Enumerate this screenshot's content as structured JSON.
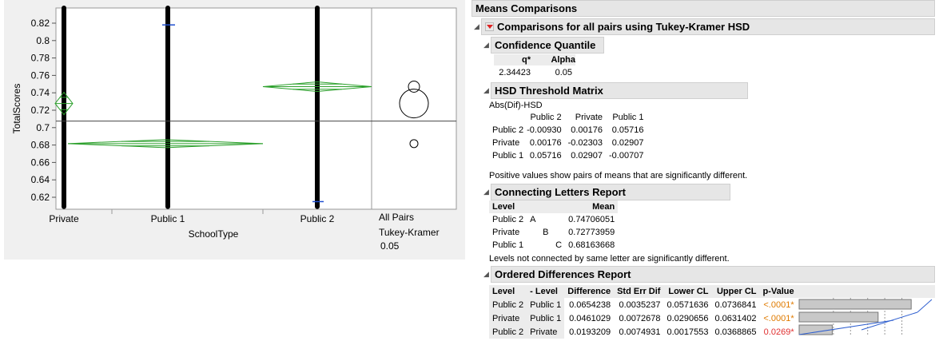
{
  "plot": {
    "y_axis_title": "TotalScores",
    "x_axis_title": "SchoolType",
    "y_ticks": [
      "0.82",
      "0.8",
      "0.78",
      "0.76",
      "0.74",
      "0.72",
      "0.7",
      "0.68",
      "0.66",
      "0.64",
      "0.62"
    ],
    "x_categories": [
      "Private",
      "Public 1",
      "Public 2"
    ],
    "grand_mean": 0.7075,
    "group_means": {
      "Private": 0.72773959,
      "Public 1": 0.68163668,
      "Public 2": 0.74706051
    },
    "comparison_labels": [
      "All Pairs",
      "Tukey-Kramer",
      "0.05"
    ],
    "colors": {
      "diamond": "#2ca02c",
      "quantile_mark": "#1f4fd0",
      "points": "#000000"
    }
  },
  "report": {
    "title": "Means Comparisons",
    "subtitle": "Comparisons for all pairs using Tukey-Kramer HSD",
    "confidence": {
      "title": "Confidence Quantile",
      "headers": [
        "q*",
        "Alpha"
      ],
      "values": [
        "2.34423",
        "0.05"
      ]
    },
    "hsd": {
      "title": "HSD Threshold Matrix",
      "caption": "Abs(Dif)-HSD",
      "col_headers": [
        "Public 2",
        "Private",
        "Public 1"
      ],
      "rows": [
        {
          "label": "Public 2",
          "values": [
            "-0.00930",
            "0.00176",
            "0.05716"
          ]
        },
        {
          "label": "Private",
          "values": [
            "0.00176",
            "-0.02303",
            "0.02907"
          ]
        },
        {
          "label": "Public 1",
          "values": [
            "0.05716",
            "0.02907",
            "-0.00707"
          ]
        }
      ],
      "note": "Positive values show pairs of means that are significantly different."
    },
    "letters": {
      "title": "Connecting Letters Report",
      "headers": [
        "Level",
        "Mean"
      ],
      "rows": [
        {
          "level": "Public 2",
          "a": "A",
          "b": "",
          "c": "",
          "mean": "0.74706051"
        },
        {
          "level": "Private",
          "a": "",
          "b": "B",
          "c": "",
          "mean": "0.72773959"
        },
        {
          "level": "Public 1",
          "a": "",
          "b": "",
          "c": "C",
          "mean": "0.68163668"
        }
      ],
      "note": "Levels not connected by same letter are significantly different."
    },
    "ordered": {
      "title": "Ordered Differences Report",
      "headers": [
        "Level",
        "- Level",
        "Difference",
        "Std Err Dif",
        "Lower CL",
        "Upper CL",
        "p-Value"
      ],
      "rows": [
        {
          "level": "Public 2",
          "minus": "Public 1",
          "diff": "0.0654238",
          "se": "0.0035237",
          "lcl": "0.0571636",
          "ucl": "0.0736841",
          "p": "<.0001*",
          "bar": 0.0654238
        },
        {
          "level": "Private",
          "minus": "Public 1",
          "diff": "0.0461029",
          "se": "0.0072678",
          "lcl": "0.0290656",
          "ucl": "0.0631402",
          "p": "<.0001*",
          "bar": 0.0461029
        },
        {
          "level": "Public 2",
          "minus": "Private",
          "diff": "0.0193209",
          "se": "0.0074931",
          "lcl": "0.0017553",
          "ucl": "0.0368865",
          "p": "0.0269*",
          "bar": 0.0193209
        }
      ]
    }
  }
}
